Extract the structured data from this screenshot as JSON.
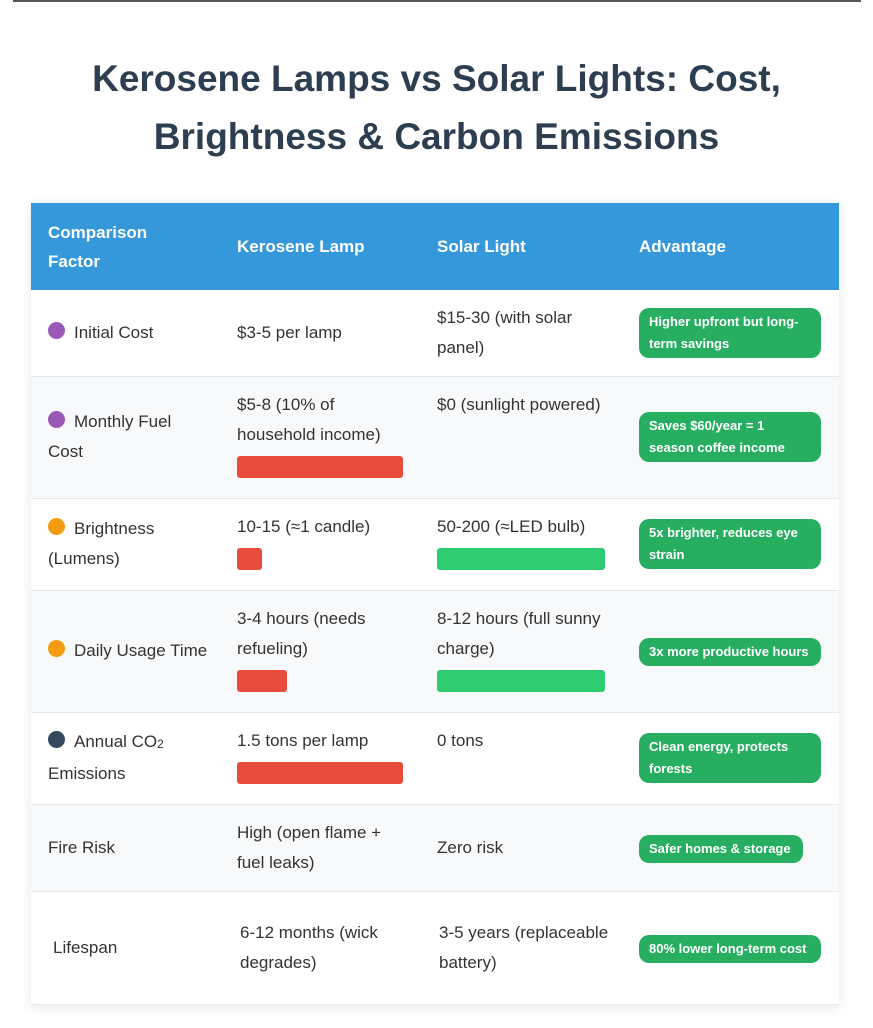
{
  "title_line1": "Kerosene Lamps vs Solar Lights: Cost,",
  "title_line2": "Brightness & Carbon Emissions",
  "colors": {
    "header": "#3498db",
    "bad": "#e74c3c",
    "good": "#2ecc71",
    "badge": "#27ae60",
    "purple": "#9b59b6",
    "orange": "#f39c12",
    "navy": "#34495e"
  },
  "headers": [
    "Comparison Factor",
    "Kerosene Lamp",
    "Solar Light",
    "Advantage"
  ],
  "rows": [
    {
      "factor": "Initial Cost",
      "dot": "#9b59b6",
      "kerosene": "$3-5 per lamp",
      "solar": "$15-30 (with solar panel)",
      "advantage": "Higher upfront but long-term savings",
      "kerosene_bar": null,
      "solar_bar": null
    },
    {
      "factor": "Monthly Fuel Cost",
      "dot": "#9b59b6",
      "kerosene": "$5-8 (10% of household income)",
      "solar": "$0 (sunlight powered)",
      "advantage": "Saves $60/year = 1 season coffee income",
      "kerosene_bar": 1.0,
      "solar_bar": null
    },
    {
      "factor": "Brightness (Lumens)",
      "dot": "#f39c12",
      "kerosene": "10-15 (≈1 candle)",
      "solar": "50-200 (≈LED bulb)",
      "advantage": "5x brighter, reduces eye strain",
      "kerosene_bar": 0.15,
      "solar_bar": 1.0
    },
    {
      "factor": "Daily Usage Time",
      "dot": "#f39c12",
      "kerosene": "3-4 hours (needs refueling)",
      "solar": "8-12 hours (full sunny charge)",
      "advantage": "3x more productive hours",
      "kerosene_bar": 0.3,
      "solar_bar": 1.0
    },
    {
      "factor": "Annual CO",
      "factor_sub": "2",
      "factor_tail": "Emissions",
      "dot": "#34495e",
      "kerosene": "1.5 tons per lamp",
      "solar": "0 tons",
      "advantage": "Clean energy, protects forests",
      "kerosene_bar": 1.0,
      "solar_bar": null
    },
    {
      "factor": "Fire Risk",
      "dot": null,
      "kerosene": "High (open flame + fuel leaks)",
      "solar": "Zero risk",
      "advantage": "Safer homes & storage",
      "kerosene_bar": null,
      "solar_bar": null
    },
    {
      "factor": "Lifespan",
      "dot": null,
      "kerosene": "6-12 months (wick degrades)",
      "solar": "3-5 years (replaceable battery)",
      "advantage": "80% lower long-term cost",
      "kerosene_bar": null,
      "solar_bar": null
    }
  ]
}
